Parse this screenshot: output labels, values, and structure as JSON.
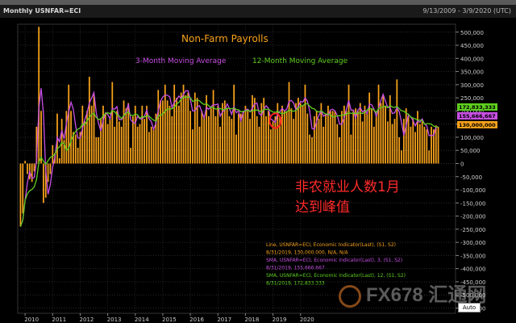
{
  "header": {
    "title": "Monthly USNFAR=ECI",
    "date_range": "9/13/2009 - 3/9/2020 (UTC)"
  },
  "chart_data": {
    "type": "bar",
    "title": "Non-Farm Payrolls",
    "annotation_cn": [
      "非农就业人数1月",
      "达到峰值"
    ],
    "x_tick_labels": [
      "2010",
      "2011",
      "2012",
      "2013",
      "2014",
      "2015",
      "2016",
      "2017",
      "2018",
      "2019",
      "2020"
    ],
    "y_tick_labels": [
      "500,000",
      "450,000",
      "400,000",
      "350,000",
      "300,000",
      "250,000",
      "200,000",
      "150,000",
      "100,000",
      "50,000",
      "0",
      "-50,000",
      "-100,000",
      "-150,000",
      "-200,000",
      "-250,000",
      "-300,000",
      "-350,000",
      "-400,000",
      "-450,000",
      "-500,000",
      "-550,000"
    ],
    "ylim": [
      -570000,
      530000
    ],
    "grid": true,
    "start": "2009-10",
    "series": [
      {
        "name": "Non-Farm Payrolls",
        "color": "#f7a21b",
        "kind": "bar",
        "values": [
          -240000,
          -190000,
          10000,
          -40000,
          -60000,
          -70000,
          -30000,
          140000,
          520000,
          200000,
          -150000,
          -130000,
          -70000,
          -40000,
          70000,
          40000,
          190000,
          20000,
          170000,
          90000,
          200000,
          300000,
          200000,
          120000,
          110000,
          60000,
          120000,
          220000,
          160000,
          200000,
          330000,
          220000,
          260000,
          100000,
          100000,
          170000,
          220000,
          190000,
          150000,
          170000,
          310000,
          140000,
          200000,
          160000,
          140000,
          240000,
          210000,
          230000,
          60000,
          180000,
          220000,
          140000,
          150000,
          220000,
          170000,
          220000,
          120000,
          140000,
          130000,
          190000,
          280000,
          240000,
          240000,
          300000,
          240000,
          220000,
          180000,
          300000,
          250000,
          220000,
          270000,
          300000,
          260000,
          270000,
          200000,
          130000,
          270000,
          250000,
          140000,
          200000,
          180000,
          260000,
          180000,
          210000,
          280000,
          180000,
          220000,
          140000,
          230000,
          240000,
          210000,
          180000,
          170000,
          300000,
          110000,
          190000,
          190000,
          200000,
          220000,
          200000,
          170000,
          260000,
          250000,
          180000,
          140000,
          230000,
          250000,
          180000,
          200000,
          130000,
          160000,
          180000,
          230000,
          180000,
          220000,
          200000,
          200000,
          310000,
          210000,
          170000,
          230000,
          250000,
          230000,
          220000,
          300000,
          190000,
          110000,
          100000,
          180000,
          200000,
          170000,
          230000,
          140000,
          190000,
          220000,
          200000,
          200000,
          200000,
          150000,
          100000,
          200000,
          220000,
          200000,
          300000,
          110000,
          200000,
          210000,
          200000,
          230000,
          160000,
          220000,
          190000,
          270000,
          210000,
          140000,
          190000,
          300000,
          230000,
          260000,
          220000,
          160000,
          260000,
          150000,
          170000,
          320000,
          100000,
          50000,
          170000,
          210000,
          180000,
          140000,
          170000,
          120000,
          200000,
          150000,
          160000,
          140000,
          130000,
          50000,
          140000,
          130000,
          145000,
          140000
        ]
      },
      {
        "name": "3-Month Moving Average",
        "color": "#c94fe6",
        "kind": "line"
      },
      {
        "name": "12-Month Moving Average",
        "color": "#5fcf1f",
        "kind": "line"
      }
    ],
    "last_values": {
      "line": "130,000,000",
      "sma3": "155,666,667",
      "sma12": "172,833,333"
    },
    "legend_box": [
      {
        "text": "Line, USNFAR=ECI, Economic Indicator(Last), (S1, S2)",
        "color": "#f7a21b"
      },
      {
        "text": "8/31/2019, 130,000.000, N/A, N/A",
        "color": "#f7a21b"
      },
      {
        "text": "SMA, USNFAR=ECI, Economic Indicator(Last), 3, (S1, S2)",
        "color": "#c94fe6"
      },
      {
        "text": "8/31/2019, 155,666.667",
        "color": "#c94fe6"
      },
      {
        "text": "SMA, USNFAR=ECI, Economic Indicator(Last), 12, (S1, S2)",
        "color": "#5fcf1f"
      },
      {
        "text": "8/31/2019, 172,833.333",
        "color": "#5fcf1f"
      }
    ],
    "highlight_period": "2019-01"
  },
  "controls": {
    "auto_label": "Auto"
  },
  "watermark": {
    "text": "FX678 汇通网"
  }
}
